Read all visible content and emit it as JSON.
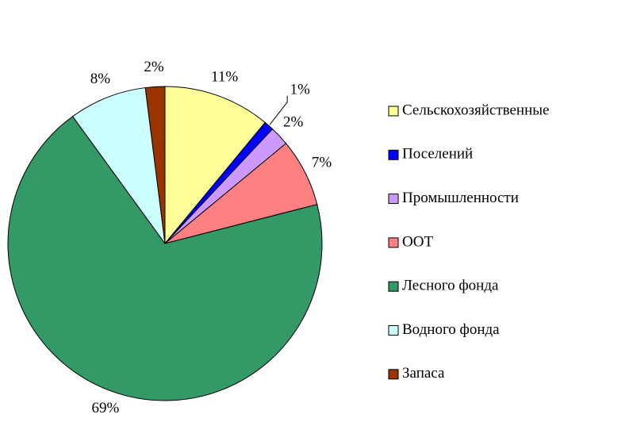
{
  "chart_data": {
    "type": "pie",
    "categories": [
      "Сельскохозяйственные",
      "Поселений",
      "Промышленности",
      "ООТ",
      "Лесного фонда",
      "Водного фонда",
      "Запаса"
    ],
    "values": [
      11,
      1,
      2,
      7,
      69,
      8,
      2
    ],
    "value_labels": [
      "11%",
      "1%",
      "2%",
      "7%",
      "69%",
      "8%",
      "2%"
    ],
    "colors": [
      "#ffff99",
      "#0000ff",
      "#cc99ff",
      "#ff8080",
      "#339966",
      "#ccffff",
      "#993300"
    ],
    "legend": "right"
  }
}
